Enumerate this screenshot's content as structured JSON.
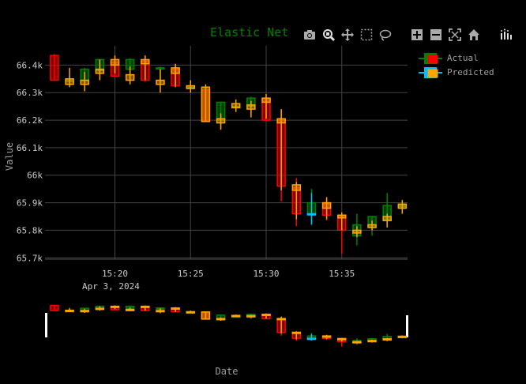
{
  "chart_data": {
    "type": "candlestick",
    "title": "Elastic Net",
    "xlabel": "Date",
    "ylabel": "Value",
    "date_label": "Apr 3, 2024",
    "x_tick_labels": [
      "15:20",
      "15:25",
      "15:30",
      "15:35"
    ],
    "y_tick_labels": [
      "65.7k",
      "65.8k",
      "65.9k",
      "66k",
      "66.1k",
      "66.2k",
      "66.3k",
      "66.4k"
    ],
    "ylim": [
      65695,
      66470
    ],
    "grid": true,
    "legend_position": "top-right",
    "rangeslider": true,
    "colors": {
      "actual_increasing": "#008000",
      "actual_decreasing": "#ff0000",
      "predicted_increasing": "#00bfff",
      "predicted_decreasing": "#ffa500",
      "title": "#008000",
      "grid": "#444444",
      "text": "#cccccc",
      "axis_title": "#9e9e9e"
    },
    "series": [
      {
        "name": "Actual",
        "x": [
          "15:16",
          "15:17",
          "15:18",
          "15:19",
          "15:20",
          "15:21",
          "15:22",
          "15:23",
          "15:24",
          "15:25",
          "15:26",
          "15:27",
          "15:28",
          "15:29",
          "15:30",
          "15:31",
          "15:32",
          "15:33",
          "15:34",
          "15:35",
          "15:36",
          "15:37",
          "15:38",
          "15:39"
        ],
        "open": [
          66435,
          66345,
          66345,
          66380,
          66410,
          66385,
          66415,
          66390,
          66385,
          66320,
          66310,
          66200,
          66250,
          66250,
          66280,
          66200,
          65955,
          65860,
          65895,
          65850,
          65780,
          65810,
          65840,
          65890
        ],
        "high": [
          66440,
          66360,
          66390,
          66420,
          66430,
          66425,
          66430,
          66395,
          66395,
          66330,
          66320,
          66265,
          66265,
          66285,
          66285,
          66235,
          65990,
          65950,
          65915,
          65860,
          65860,
          65850,
          65935,
          65905
        ],
        "low": [
          66345,
          66330,
          66330,
          66370,
          66360,
          66340,
          66340,
          66330,
          66320,
          66300,
          66200,
          66170,
          66230,
          66225,
          66200,
          65905,
          65815,
          65820,
          65835,
          65715,
          65745,
          65780,
          65815,
          65860
        ],
        "close": [
          66345,
          66345,
          66385,
          66420,
          66360,
          66420,
          66345,
          66390,
          66325,
          66320,
          66200,
          66265,
          66250,
          66280,
          66200,
          65960,
          65860,
          65900,
          65855,
          65800,
          65820,
          65850,
          65890,
          65890
        ]
      },
      {
        "name": "Predicted",
        "x": [
          "15:17",
          "15:18",
          "15:19",
          "15:20",
          "15:21",
          "15:22",
          "15:23",
          "15:24",
          "15:25",
          "15:26",
          "15:27",
          "15:28",
          "15:29",
          "15:30",
          "15:31",
          "15:32",
          "15:33",
          "15:34",
          "15:35",
          "15:36",
          "15:37",
          "15:38",
          "15:39"
        ],
        "open": [
          66350,
          66345,
          66385,
          66420,
          66365,
          66420,
          66345,
          66390,
          66325,
          66320,
          66205,
          66260,
          66255,
          66280,
          66205,
          65965,
          65860,
          65900,
          65855,
          65800,
          65820,
          65850,
          65895
        ],
        "high": [
          66390,
          66375,
          66420,
          66435,
          66395,
          66435,
          66385,
          66405,
          66345,
          66330,
          66225,
          66275,
          66270,
          66295,
          66240,
          65975,
          65935,
          65920,
          65865,
          65815,
          65835,
          65860,
          65910
        ],
        "low": [
          66320,
          66305,
          66345,
          66370,
          66330,
          66345,
          66300,
          66320,
          66300,
          66195,
          66165,
          66230,
          66210,
          66205,
          65945,
          65840,
          65820,
          65840,
          65800,
          65775,
          65800,
          65810,
          65860
        ],
        "close": [
          66330,
          66330,
          66370,
          66400,
          66345,
          66405,
          66330,
          66370,
          66315,
          66195,
          66190,
          66245,
          66240,
          66265,
          66190,
          65945,
          65860,
          65880,
          65845,
          65790,
          65810,
          65835,
          65880
        ]
      }
    ]
  },
  "modebar": [
    {
      "icon": "camera-icon",
      "tip": "Download plot as a png"
    },
    {
      "icon": "zoom-icon",
      "tip": "Zoom"
    },
    {
      "icon": "pan-icon",
      "tip": "Pan"
    },
    {
      "icon": "box-select-icon",
      "tip": "Box Select"
    },
    {
      "icon": "lasso-select-icon",
      "tip": "Lasso Select"
    },
    {
      "icon": "zoom-in-icon",
      "tip": "Zoom in"
    },
    {
      "icon": "zoom-out-icon",
      "tip": "Zoom out"
    },
    {
      "icon": "autoscale-icon",
      "tip": "Autoscale"
    },
    {
      "icon": "reset-axes-icon",
      "tip": "Reset axes"
    },
    {
      "icon": "plotly-logo-icon",
      "tip": "Produced with Plotly"
    }
  ]
}
